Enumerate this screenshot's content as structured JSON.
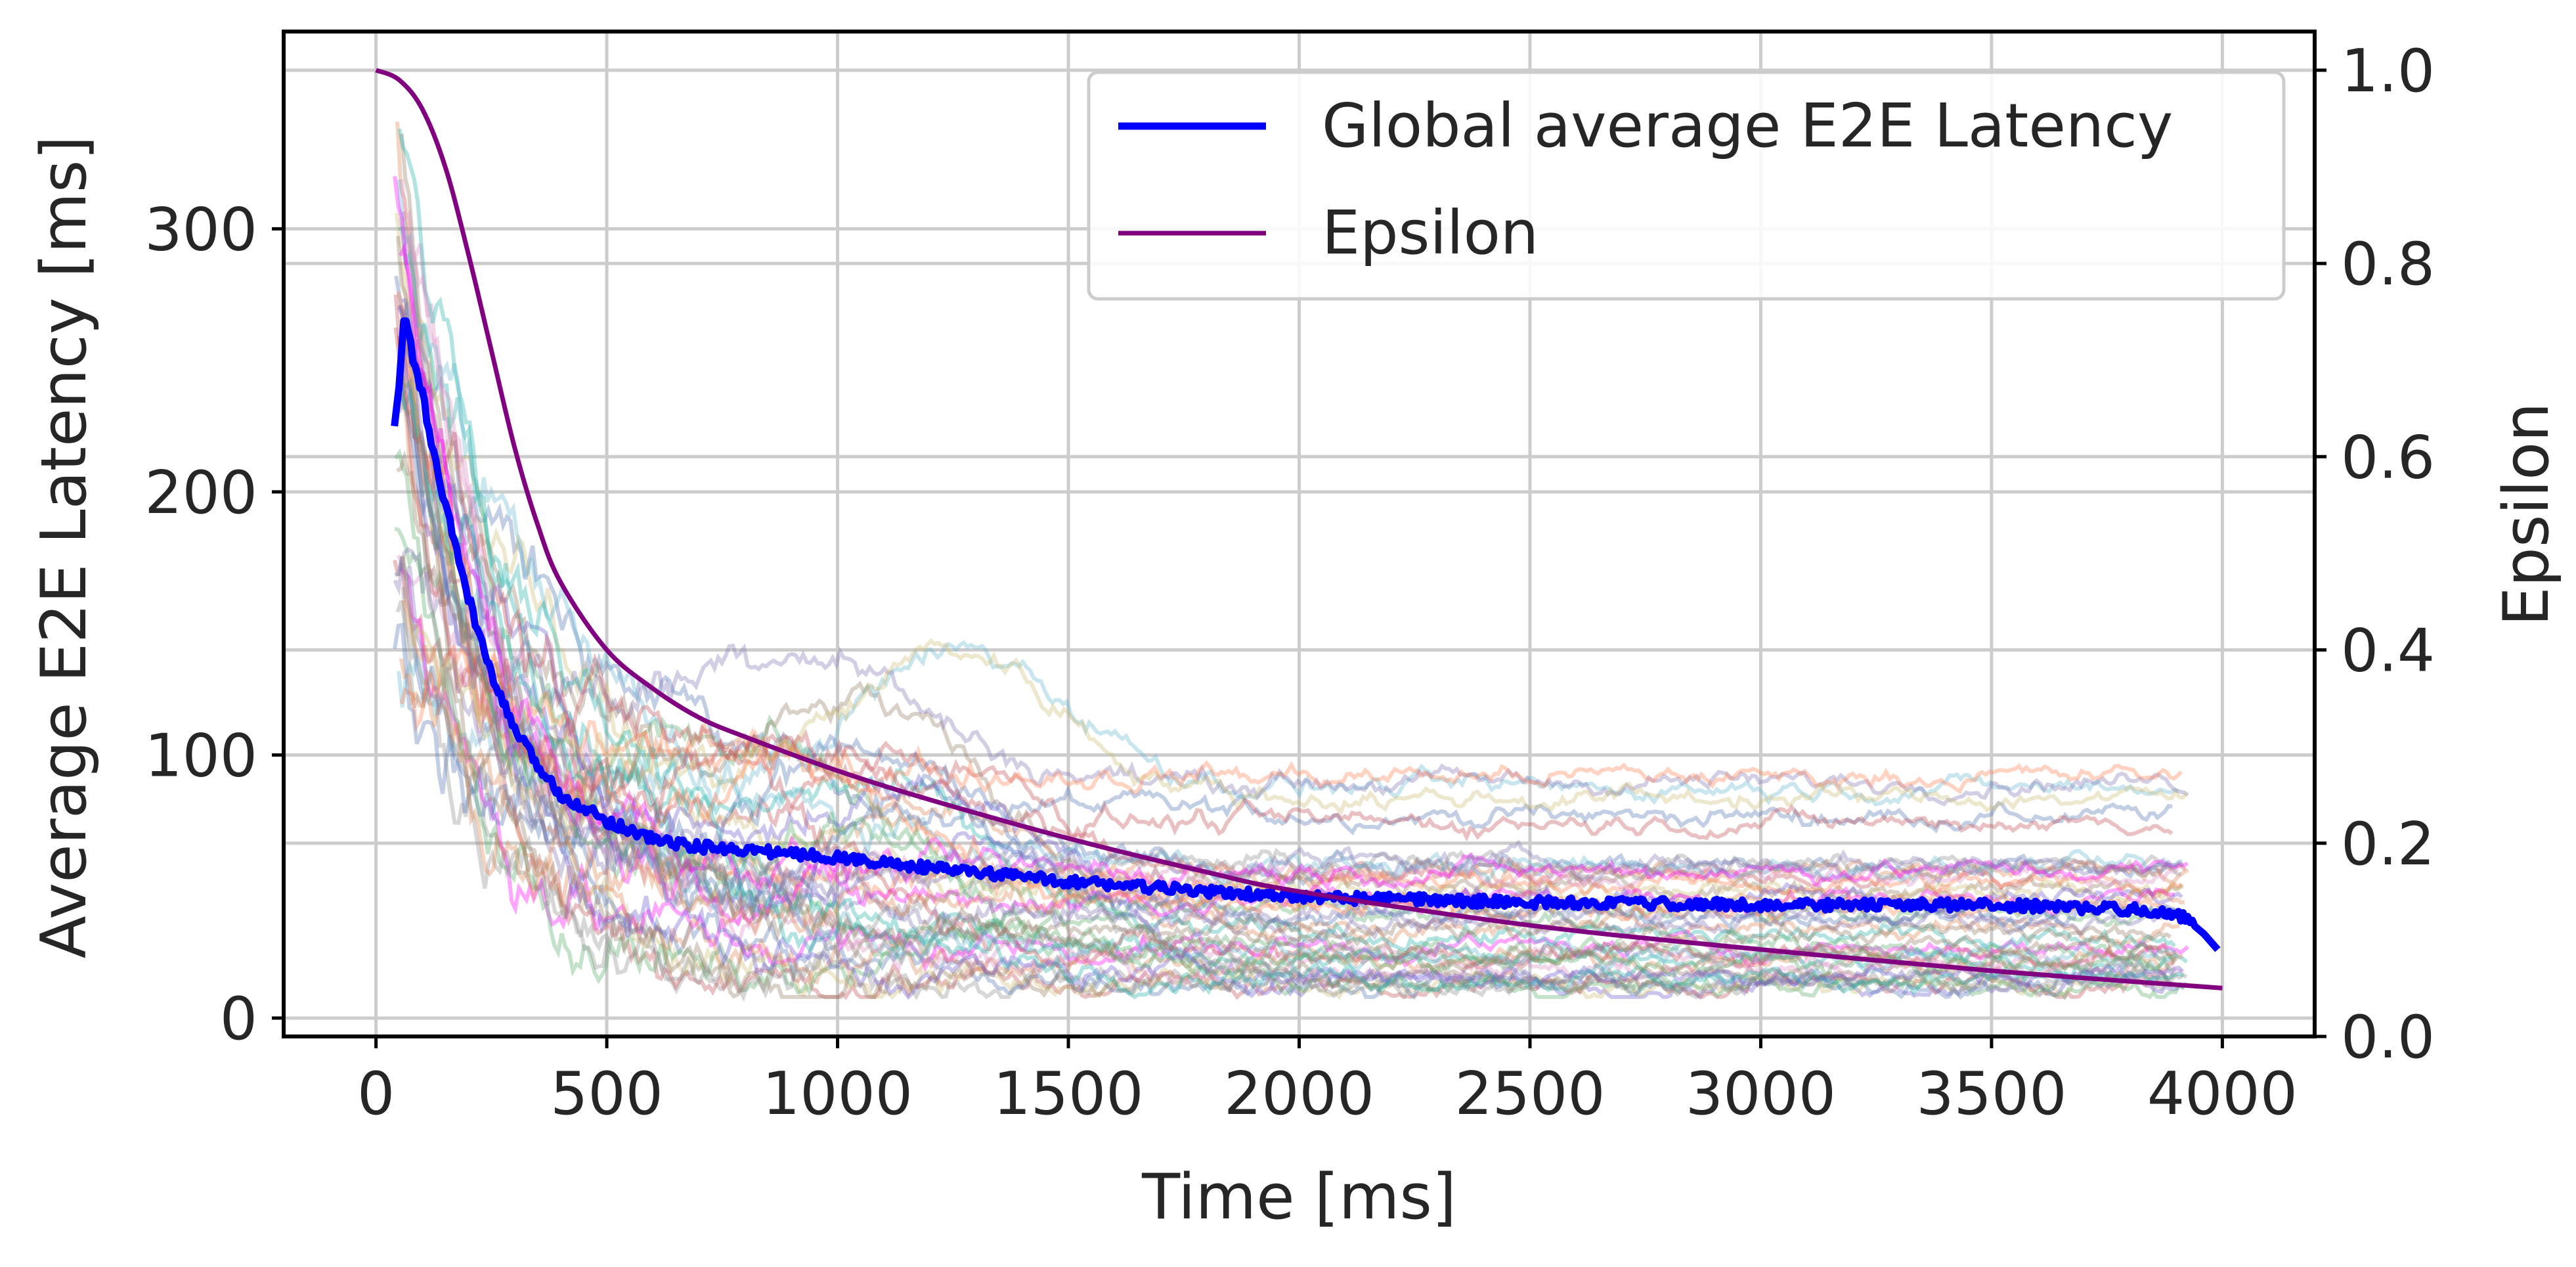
{
  "chart_data": {
    "type": "line",
    "xlabel": "Time [ms]",
    "ylabel": "Average E2E Latency [ms]",
    "y2label": "Epsilon",
    "xlim": [
      -200,
      4200
    ],
    "ylim": [
      -7,
      375
    ],
    "y2lim": [
      0.0,
      1.04
    ],
    "xticks": [
      "0",
      "500",
      "1000",
      "1500",
      "2000",
      "2500",
      "3000",
      "3500",
      "4000"
    ],
    "yticks": [
      "0",
      "100",
      "200",
      "300"
    ],
    "y2ticks": [
      "0.0",
      "0.2",
      "0.4",
      "0.6",
      "0.8",
      "1.0"
    ],
    "grid": true,
    "legend_position": "upper right",
    "legend": [
      "Global average E2E Latency",
      "Epsilon"
    ],
    "series": [
      {
        "name": "Global average E2E Latency",
        "color": "#0000ff",
        "axis": "left",
        "x": [
          40,
          50,
          60,
          70,
          80,
          100,
          120,
          150,
          200,
          250,
          300,
          350,
          400,
          500,
          600,
          700,
          800,
          1000,
          1200,
          1500,
          1800,
          2000,
          2500,
          3000,
          3500,
          3850,
          3920,
          3960,
          3990
        ],
        "y": [
          225,
          240,
          265,
          262,
          250,
          238,
          218,
          195,
          160,
          130,
          110,
          96,
          85,
          75,
          68,
          65,
          64,
          61,
          57,
          52,
          48,
          46,
          44,
          43,
          43,
          41,
          38,
          32,
          26
        ]
      },
      {
        "name": "Epsilon",
        "color": "#800080",
        "axis": "right",
        "x": [
          0,
          50,
          100,
          150,
          200,
          250,
          300,
          350,
          400,
          500,
          600,
          700,
          800,
          1000,
          1200,
          1500,
          1800,
          2000,
          2500,
          3000,
          3500,
          4000
        ],
        "y": [
          1.0,
          0.99,
          0.96,
          0.9,
          0.81,
          0.71,
          0.61,
          0.53,
          0.47,
          0.4,
          0.36,
          0.33,
          0.31,
          0.275,
          0.245,
          0.205,
          0.17,
          0.15,
          0.115,
          0.09,
          0.068,
          0.05
        ]
      }
    ],
    "individual_runs_note_values": {
      "count": 48,
      "x_start": 40,
      "x_end": 3930,
      "palette": [
        "#4c72b0",
        "#dd8452",
        "#55a868",
        "#c44e52",
        "#8172b3",
        "#937860",
        "#da8bc3",
        "#8c8c8c",
        "#ccb974",
        "#64b5cd",
        "#ff00ff",
        "#6a5acd",
        "#20b2aa",
        "#ff7f50"
      ]
    }
  }
}
